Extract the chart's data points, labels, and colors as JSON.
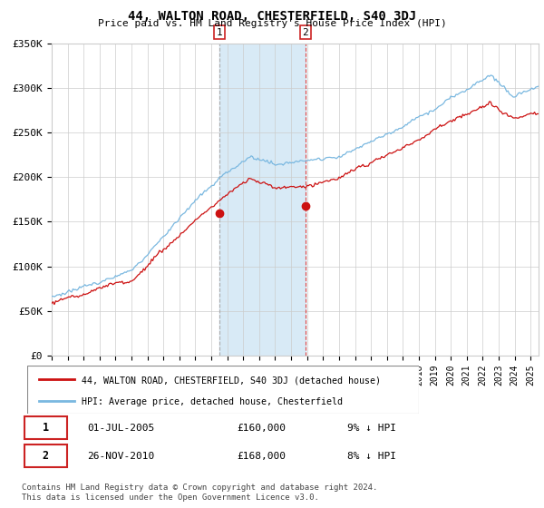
{
  "title": "44, WALTON ROAD, CHESTERFIELD, S40 3DJ",
  "subtitle": "Price paid vs. HM Land Registry's House Price Index (HPI)",
  "hpi_color": "#7ab8e0",
  "price_color": "#cc1111",
  "ylim": [
    0,
    350000
  ],
  "yticks": [
    0,
    50000,
    100000,
    150000,
    200000,
    250000,
    300000,
    350000
  ],
  "ytick_labels": [
    "£0",
    "£50K",
    "£100K",
    "£150K",
    "£200K",
    "£250K",
    "£300K",
    "£350K"
  ],
  "t1_year": 2005.5,
  "t2_year": 2010.9,
  "t1_price": 160000,
  "t2_price": 168000,
  "transaction1_date": "01-JUL-2005",
  "transaction2_date": "26-NOV-2010",
  "pct1": "9% ↓ HPI",
  "pct2": "8% ↓ HPI",
  "legend_line1": "44, WALTON ROAD, CHESTERFIELD, S40 3DJ (detached house)",
  "legend_line2": "HPI: Average price, detached house, Chesterfield",
  "footer": "Contains HM Land Registry data © Crown copyright and database right 2024.\nThis data is licensed under the Open Government Licence v3.0.",
  "shading_color": "#d8eaf6",
  "bg_color": "#ffffff",
  "grid_color": "#cccccc",
  "xstart": 1995,
  "xend": 2025.5
}
